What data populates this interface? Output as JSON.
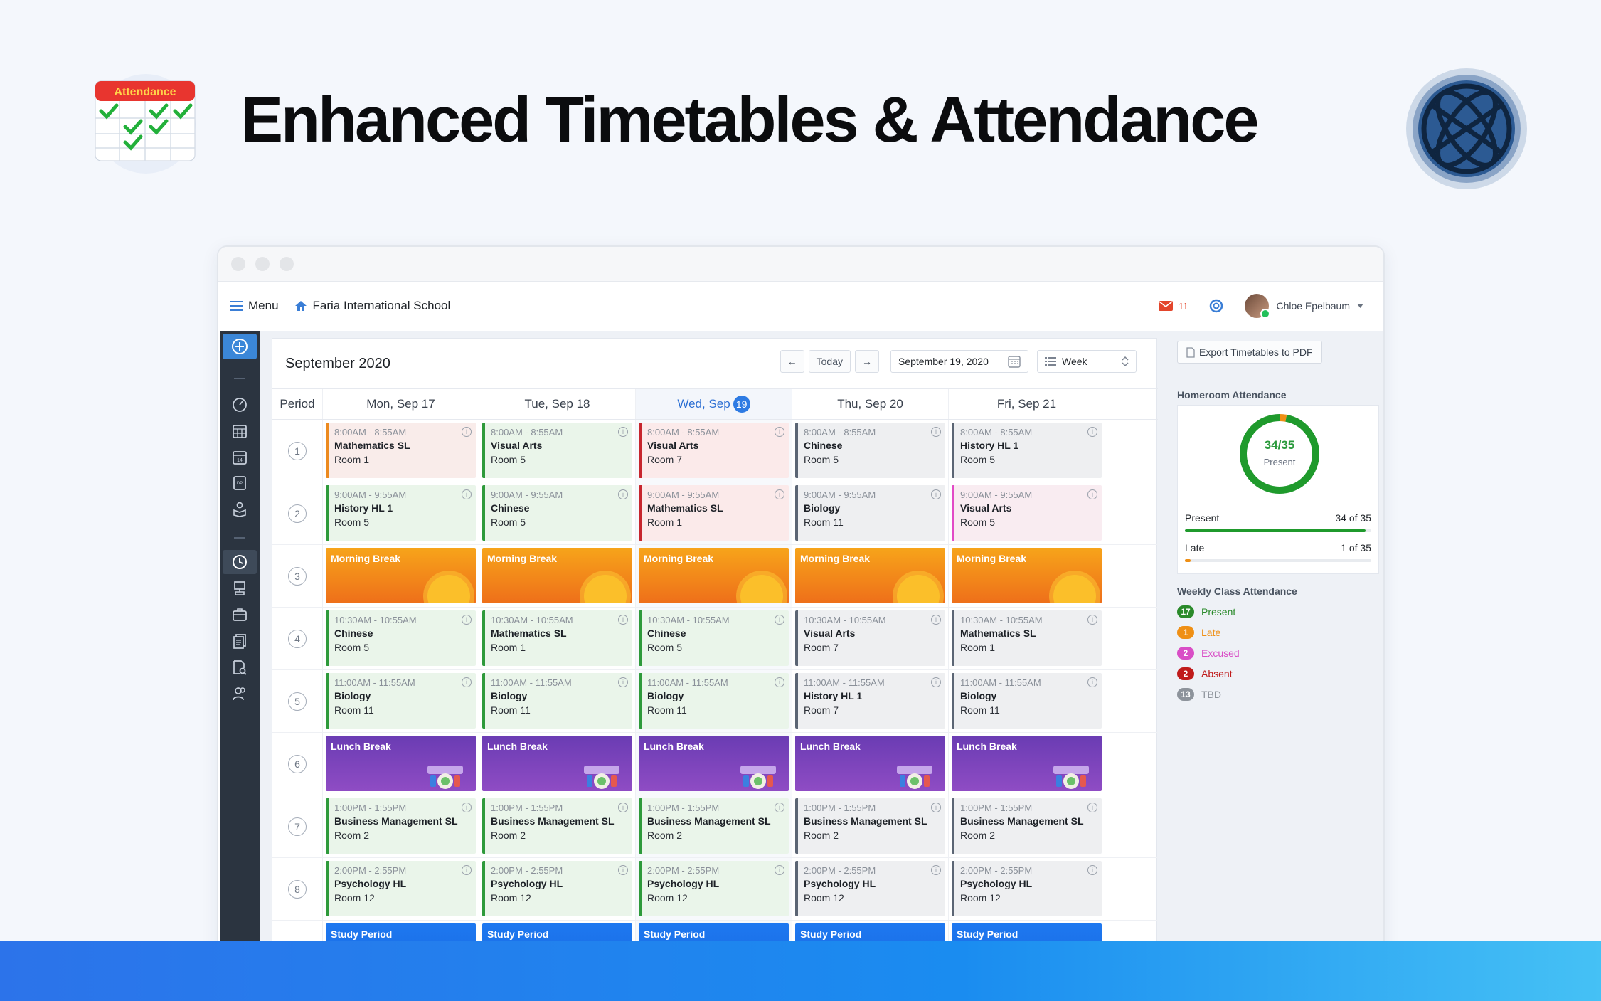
{
  "hero": {
    "title": "Enhanced Timetables & Attendance",
    "logo_label": "Attendance"
  },
  "topnav": {
    "menu_label": "Menu",
    "school_name": "Faria International School",
    "mail_count": "11",
    "user_name": "Chloe Epelbaum"
  },
  "calendar": {
    "month_label": "September 2020",
    "today_label": "Today",
    "date_value": "September 19, 2020",
    "view_label": "Week",
    "period_header": "Period",
    "days": [
      {
        "label": "Mon, Sep 17"
      },
      {
        "label": "Tue, Sep 18"
      },
      {
        "label": "Wed, Sep",
        "num": "19",
        "today": true
      },
      {
        "label": "Thu, Sep 20"
      },
      {
        "label": "Fri, Sep 21"
      }
    ],
    "rows": [
      {
        "period": "1",
        "cells": [
          {
            "time": "8:00AM - 8:55AM",
            "subject": "Mathematics SL",
            "room": "Room 1",
            "color": "orange"
          },
          {
            "time": "8:00AM - 8:55AM",
            "subject": "Visual Arts",
            "room": "Room 5",
            "color": "green"
          },
          {
            "time": "8:00AM - 8:55AM",
            "subject": "Visual Arts",
            "room": "Room 7",
            "color": "red"
          },
          {
            "time": "8:00AM - 8:55AM",
            "subject": "Chinese",
            "room": "Room 5",
            "color": "gray"
          },
          {
            "time": "8:00AM - 8:55AM",
            "subject": "History HL 1",
            "room": "Room 5",
            "color": "gray"
          }
        ]
      },
      {
        "period": "2",
        "cells": [
          {
            "time": "9:00AM - 9:55AM",
            "subject": "History HL 1",
            "room": "Room 5",
            "color": "green"
          },
          {
            "time": "9:00AM - 9:55AM",
            "subject": "Chinese",
            "room": "Room 5",
            "color": "green"
          },
          {
            "time": "9:00AM - 9:55AM",
            "subject": "Mathematics SL",
            "room": "Room 1",
            "color": "red"
          },
          {
            "time": "9:00AM - 9:55AM",
            "subject": "Biology",
            "room": "Room 11",
            "color": "gray"
          },
          {
            "time": "9:00AM - 9:55AM",
            "subject": "Visual Arts",
            "room": "Room 5",
            "color": "pink"
          }
        ]
      },
      {
        "period": "3",
        "break": "morning",
        "label": "Morning Break"
      },
      {
        "period": "4",
        "cells": [
          {
            "time": "10:30AM - 10:55AM",
            "subject": "Chinese",
            "room": "Room 5",
            "color": "green"
          },
          {
            "time": "10:30AM - 10:55AM",
            "subject": "Mathematics SL",
            "room": "Room 1",
            "color": "green"
          },
          {
            "time": "10:30AM - 10:55AM",
            "subject": "Chinese",
            "room": "Room 5",
            "color": "green"
          },
          {
            "time": "10:30AM - 10:55AM",
            "subject": "Visual Arts",
            "room": "Room 7",
            "color": "gray"
          },
          {
            "time": "10:30AM - 10:55AM",
            "subject": "Mathematics SL",
            "room": "Room 1",
            "color": "gray"
          }
        ]
      },
      {
        "period": "5",
        "cells": [
          {
            "time": "11:00AM - 11:55AM",
            "subject": "Biology",
            "room": "Room 11",
            "color": "green"
          },
          {
            "time": "11:00AM - 11:55AM",
            "subject": "Biology",
            "room": "Room 11",
            "color": "green"
          },
          {
            "time": "11:00AM - 11:55AM",
            "subject": "Biology",
            "room": "Room 11",
            "color": "green"
          },
          {
            "time": "11:00AM - 11:55AM",
            "subject": "History HL 1",
            "room": "Room 7",
            "color": "gray"
          },
          {
            "time": "11:00AM - 11:55AM",
            "subject": "Biology",
            "room": "Room 11",
            "color": "gray"
          }
        ]
      },
      {
        "period": "6",
        "break": "lunch",
        "label": "Lunch Break"
      },
      {
        "period": "7",
        "cells": [
          {
            "time": "1:00PM - 1:55PM",
            "subject": "Business Management SL",
            "room": "Room 2",
            "color": "green"
          },
          {
            "time": "1:00PM - 1:55PM",
            "subject": "Business Management SL",
            "room": "Room 2",
            "color": "green"
          },
          {
            "time": "1:00PM - 1:55PM",
            "subject": "Business Management SL",
            "room": "Room 2",
            "color": "green"
          },
          {
            "time": "1:00PM - 1:55PM",
            "subject": "Business Management SL",
            "room": "Room 2",
            "color": "gray"
          },
          {
            "time": "1:00PM - 1:55PM",
            "subject": "Business Management SL",
            "room": "Room 2",
            "color": "gray"
          }
        ]
      },
      {
        "period": "8",
        "cells": [
          {
            "time": "2:00PM - 2:55PM",
            "subject": "Psychology HL",
            "room": "Room 12",
            "color": "green"
          },
          {
            "time": "2:00PM - 2:55PM",
            "subject": "Psychology HL",
            "room": "Room 12",
            "color": "green"
          },
          {
            "time": "2:00PM - 2:55PM",
            "subject": "Psychology HL",
            "room": "Room 12",
            "color": "green"
          },
          {
            "time": "2:00PM - 2:55PM",
            "subject": "Psychology HL",
            "room": "Room 12",
            "color": "gray"
          },
          {
            "time": "2:00PM - 2:55PM",
            "subject": "Psychology HL",
            "room": "Room 12",
            "color": "gray"
          }
        ]
      },
      {
        "period": "",
        "break": "study",
        "label": "Study Period"
      }
    ]
  },
  "sidepanel": {
    "export_label": "Export Timetables to PDF",
    "homeroom_title": "Homeroom Attendance",
    "donut_value": "34/35",
    "donut_label": "Present",
    "present_fraction": 0.971,
    "late_fraction": 0.029,
    "present_label": "Present",
    "present_value": "34 of 35",
    "late_label": "Late",
    "late_value": "1 of 35",
    "weekly_title": "Weekly Class Attendance",
    "legend": [
      {
        "count": "17",
        "label": "Present",
        "color": "#2a8a2a"
      },
      {
        "count": "1",
        "label": "Late",
        "color": "#ef8f14"
      },
      {
        "count": "2",
        "label": "Excused",
        "color": "#d94ec6"
      },
      {
        "count": "2",
        "label": "Absent",
        "color": "#c01b1b"
      },
      {
        "count": "13",
        "label": "TBD",
        "color": "#8d939b"
      }
    ]
  }
}
